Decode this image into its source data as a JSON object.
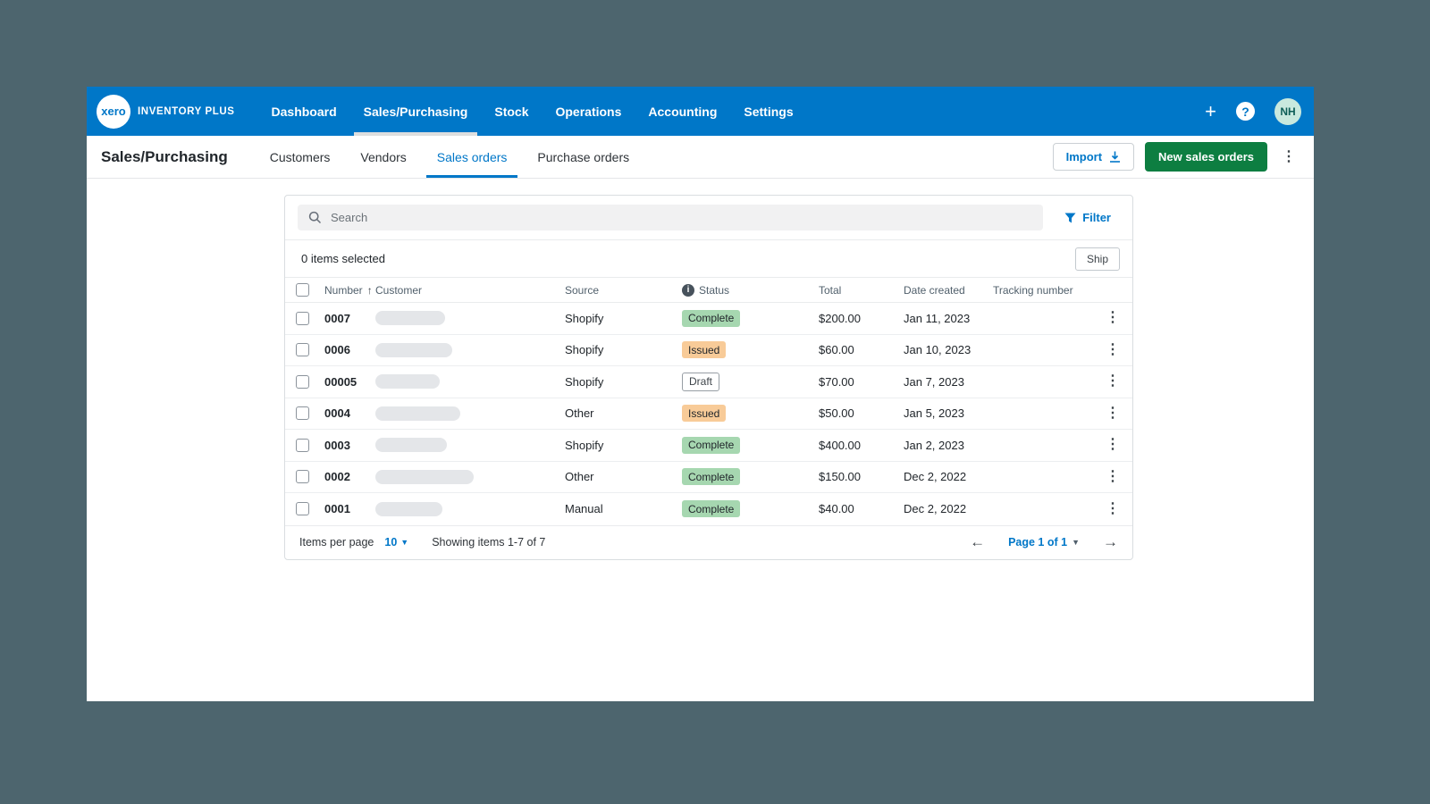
{
  "colors": {
    "topbar_blue": "#0077C8",
    "accent_blue": "#0077C8",
    "green_button": "#0D7E41",
    "outer_background": "#4D656E",
    "badge_complete_bg": "#A6D7B0",
    "badge_issued_bg": "#F8CB98",
    "avatar_bg": "#C9E9DE"
  },
  "topnav": {
    "logo_text": "xero",
    "brand": "INVENTORY PLUS",
    "items": [
      {
        "label": "Dashboard",
        "active": false
      },
      {
        "label": "Sales/Purchasing",
        "active": true
      },
      {
        "label": "Stock",
        "active": false
      },
      {
        "label": "Operations",
        "active": false
      },
      {
        "label": "Accounting",
        "active": false
      },
      {
        "label": "Settings",
        "active": false
      }
    ],
    "plus_label": "+",
    "help_label": "?",
    "avatar_initials": "NH"
  },
  "header": {
    "title": "Sales/Purchasing",
    "tabs": [
      {
        "label": "Customers",
        "active": false
      },
      {
        "label": "Vendors",
        "active": false
      },
      {
        "label": "Sales orders",
        "active": true
      },
      {
        "label": "Purchase orders",
        "active": false
      }
    ],
    "import_label": "Import",
    "new_button_label": "New sales orders"
  },
  "toolbar": {
    "search_placeholder": "Search",
    "filter_label": "Filter"
  },
  "selection": {
    "text": "0 items selected",
    "ship_label": "Ship"
  },
  "table": {
    "columns": [
      "Number",
      "Customer",
      "Source",
      "Status",
      "Total",
      "Date created",
      "Tracking number"
    ],
    "sort_column": "Number",
    "sort_direction": "asc",
    "rows": [
      {
        "number": "0007",
        "source": "Shopify",
        "status": "Complete",
        "total": "$200.00",
        "date_created": "Jan 11, 2023",
        "tracking_number": "",
        "customer_pill_width": 78
      },
      {
        "number": "0006",
        "source": "Shopify",
        "status": "Issued",
        "total": "$60.00",
        "date_created": "Jan 10, 2023",
        "tracking_number": "",
        "customer_pill_width": 86
      },
      {
        "number": "00005",
        "source": "Shopify",
        "status": "Draft",
        "total": "$70.00",
        "date_created": "Jan 7, 2023",
        "tracking_number": "",
        "customer_pill_width": 72
      },
      {
        "number": "0004",
        "source": "Other",
        "status": "Issued",
        "total": "$50.00",
        "date_created": "Jan 5, 2023",
        "tracking_number": "",
        "customer_pill_width": 95
      },
      {
        "number": "0003",
        "source": "Shopify",
        "status": "Complete",
        "total": "$400.00",
        "date_created": "Jan 2, 2023",
        "tracking_number": "",
        "customer_pill_width": 80
      },
      {
        "number": "0002",
        "source": "Other",
        "status": "Complete",
        "total": "$150.00",
        "date_created": "Dec 2, 2022",
        "tracking_number": "",
        "customer_pill_width": 110
      },
      {
        "number": "0001",
        "source": "Manual",
        "status": "Complete",
        "total": "$40.00",
        "date_created": "Dec 2, 2022",
        "tracking_number": "",
        "customer_pill_width": 75
      }
    ]
  },
  "pagination": {
    "items_per_page_label": "Items per page",
    "per_page_value": "10",
    "showing_text": "Showing items 1-7 of 7",
    "page_label": "Page 1 of 1"
  }
}
